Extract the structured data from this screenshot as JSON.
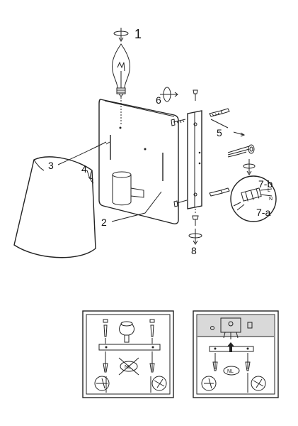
{
  "steps": {
    "s1": "1",
    "s2": "2",
    "s3": "3",
    "s4": "4",
    "s5": "5",
    "s6": "6",
    "s7a": "7-a",
    "s7b": "7-b",
    "s8": "8"
  },
  "wire_labels": {
    "l": "L",
    "n": "N"
  },
  "badges": {
    "nl_left": "NL",
    "nl_right": "NL"
  }
}
